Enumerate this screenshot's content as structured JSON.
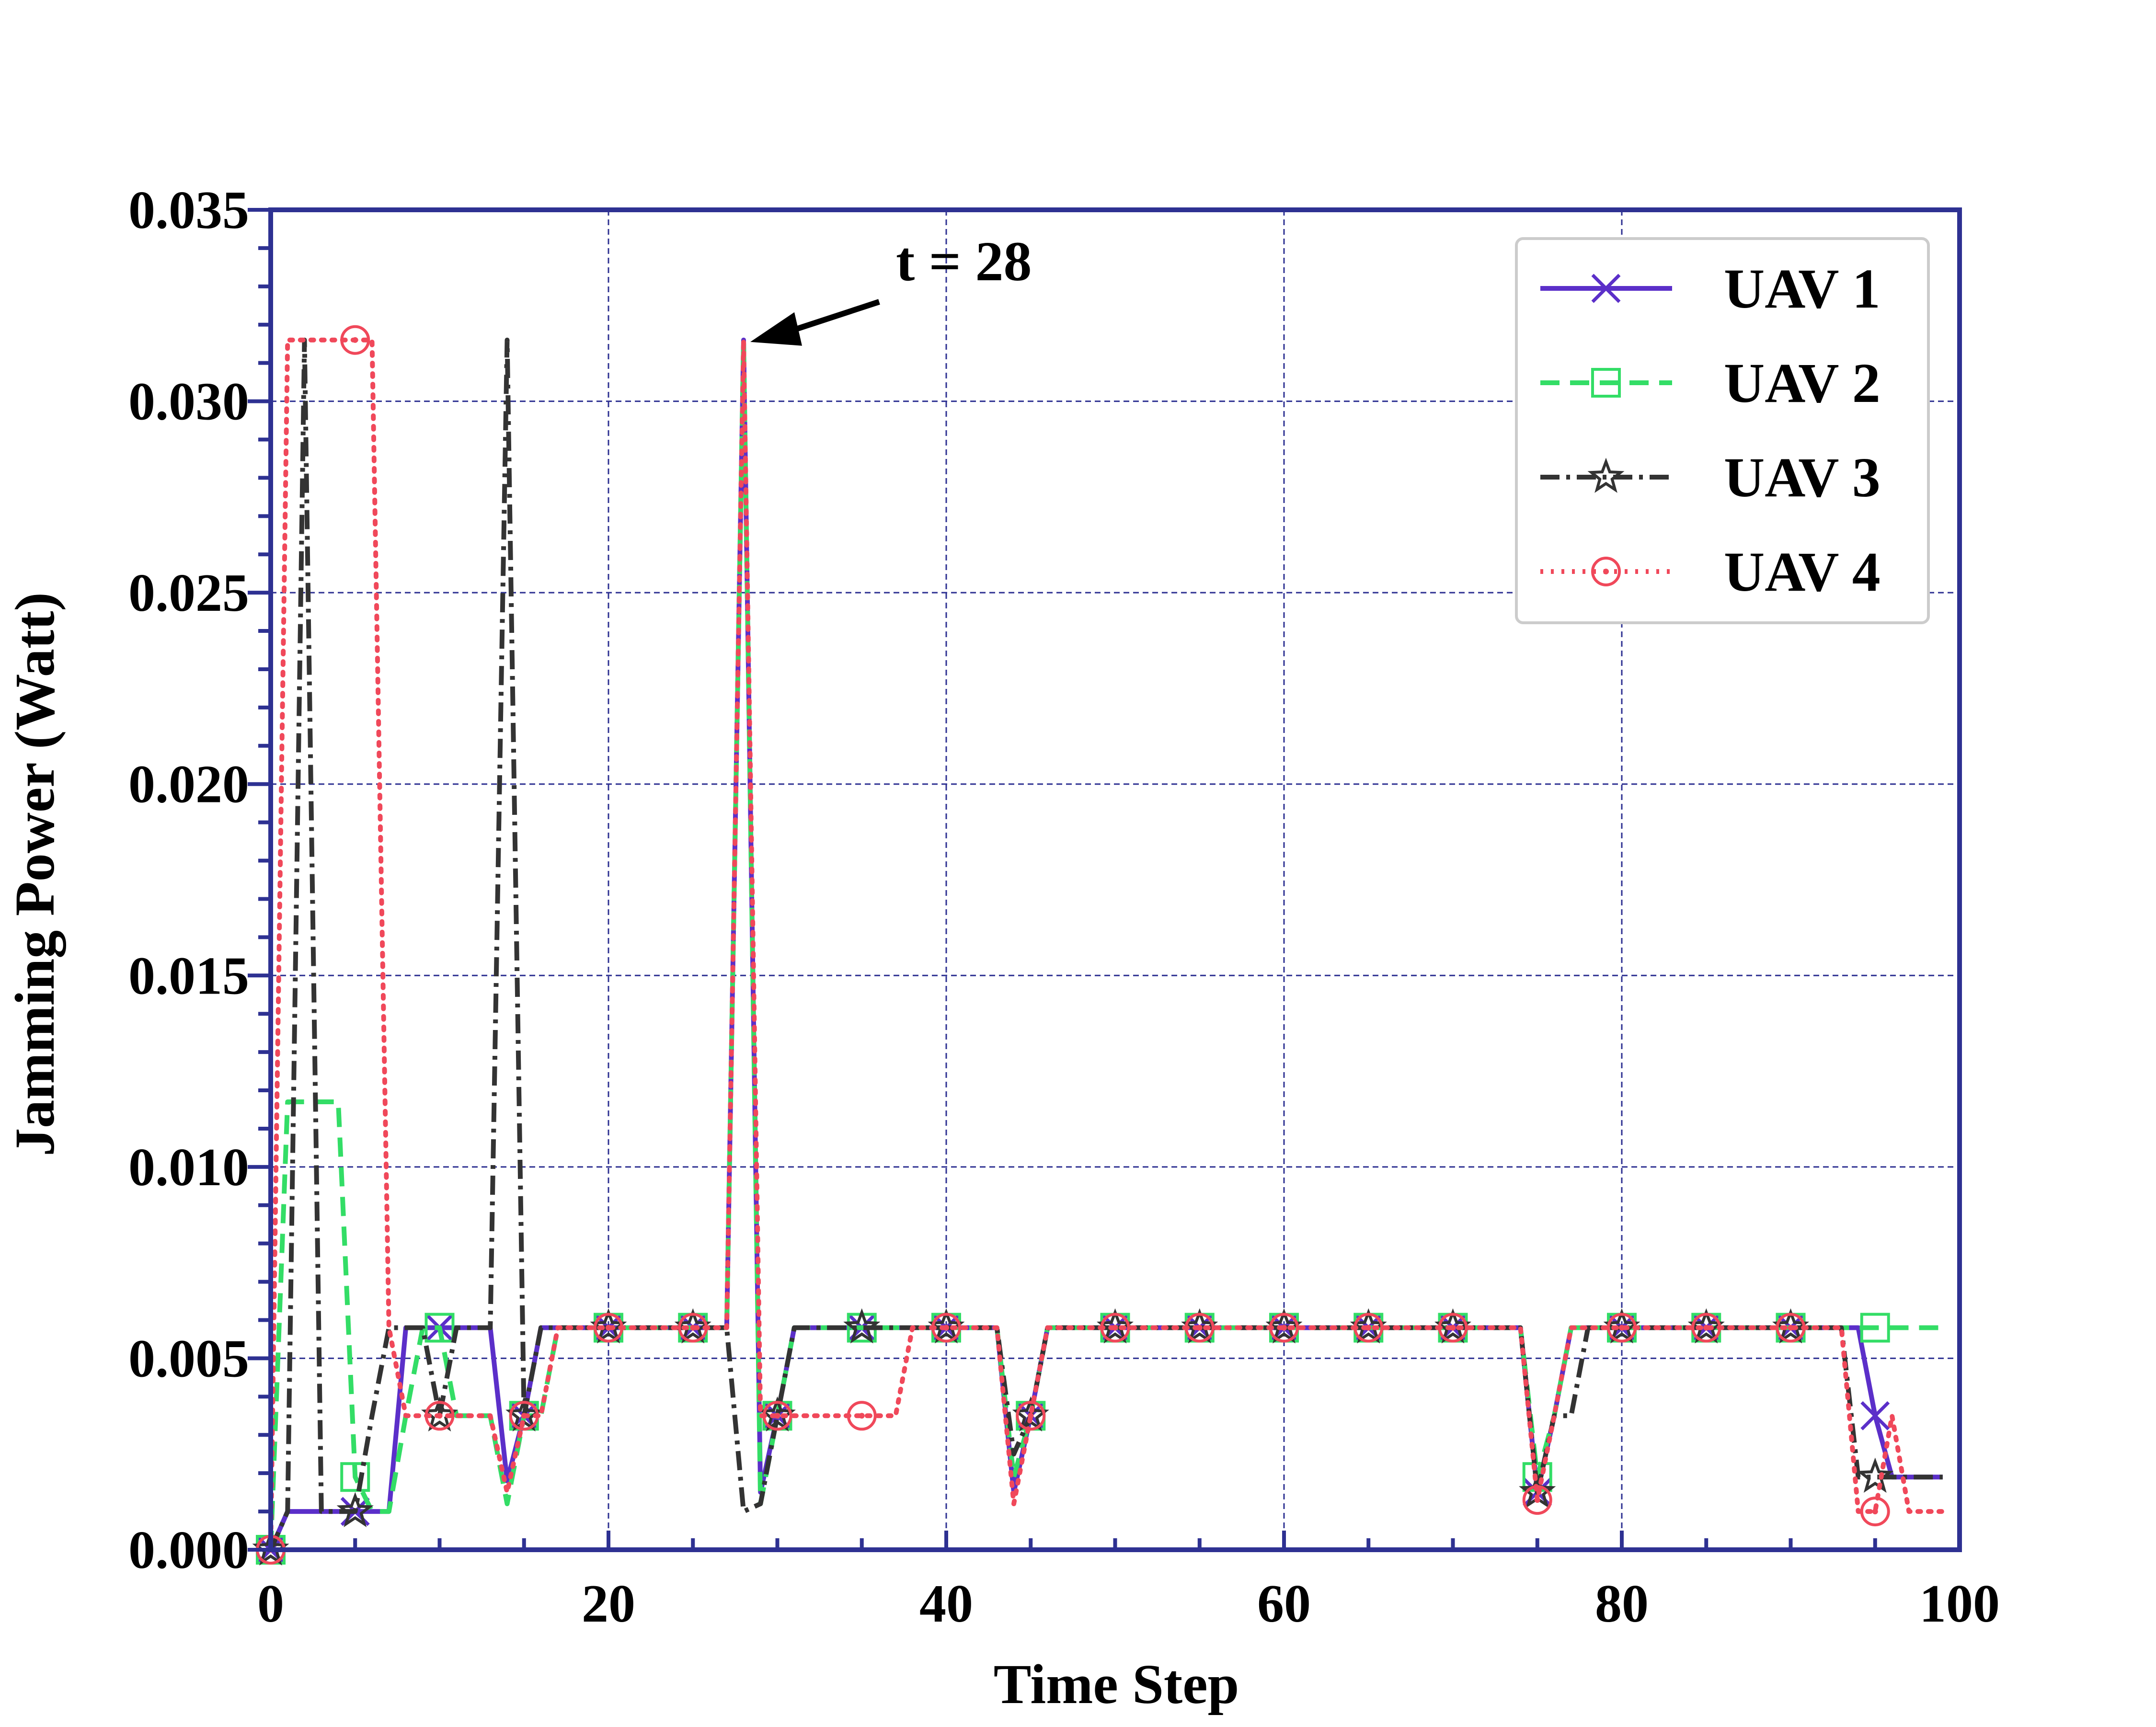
{
  "chart_data": {
    "type": "line",
    "title": "",
    "xlabel": "Time Step",
    "ylabel": "Jamming Power (Watt)",
    "xlim": [
      0,
      100
    ],
    "ylim": [
      0,
      0.035
    ],
    "x_ticks": [
      0,
      20,
      40,
      60,
      80,
      100
    ],
    "x_tick_labels": [
      "0",
      "20",
      "40",
      "60",
      "80",
      "100"
    ],
    "y_ticks": [
      0,
      0.005,
      0.01,
      0.015,
      0.02,
      0.025,
      0.03,
      0.035
    ],
    "y_tick_labels": [
      "0.000",
      "0.005",
      "0.010",
      "0.015",
      "0.020",
      "0.025",
      "0.030",
      "0.035"
    ],
    "grid": true,
    "legend_position": "top-right",
    "annotation": {
      "text": "t = 28",
      "x": 28,
      "y": 0.0316
    },
    "colors": {
      "frame": "#2e3192",
      "grid": "#2e3192"
    },
    "x": [
      0,
      1,
      2,
      3,
      4,
      5,
      6,
      7,
      8,
      9,
      10,
      11,
      12,
      13,
      14,
      15,
      16,
      17,
      18,
      19,
      20,
      21,
      22,
      23,
      24,
      25,
      26,
      27,
      28,
      29,
      30,
      31,
      32,
      33,
      34,
      35,
      36,
      37,
      38,
      39,
      40,
      41,
      42,
      43,
      44,
      45,
      46,
      47,
      48,
      49,
      50,
      51,
      52,
      53,
      54,
      55,
      56,
      57,
      58,
      59,
      60,
      61,
      62,
      63,
      64,
      65,
      66,
      67,
      68,
      69,
      70,
      71,
      72,
      73,
      74,
      75,
      76,
      77,
      78,
      79,
      80,
      81,
      82,
      83,
      84,
      85,
      86,
      87,
      88,
      89,
      90,
      91,
      92,
      93,
      94,
      95,
      96,
      97,
      98,
      99
    ],
    "series": [
      {
        "name": "UAV 1",
        "color": "#5b2fc9",
        "marker": "x",
        "dash": "",
        "values": [
          0,
          0.001,
          0.001,
          0.001,
          0.001,
          0.001,
          0.001,
          0.001,
          0.0058,
          0.0058,
          0.0058,
          0.0058,
          0.0058,
          0.0058,
          0.0018,
          0.0035,
          0.0058,
          0.0058,
          0.0058,
          0.0058,
          0.0058,
          0.0058,
          0.0058,
          0.0058,
          0.0058,
          0.0058,
          0.0058,
          0.0058,
          0.0316,
          0.0015,
          0.0035,
          0.0058,
          0.0058,
          0.0058,
          0.0058,
          0.0058,
          0.0058,
          0.0058,
          0.0058,
          0.0058,
          0.0058,
          0.0058,
          0.0058,
          0.0058,
          0.0015,
          0.0035,
          0.0058,
          0.0058,
          0.0058,
          0.0058,
          0.0058,
          0.0058,
          0.0058,
          0.0058,
          0.0058,
          0.0058,
          0.0058,
          0.0058,
          0.0058,
          0.0058,
          0.0058,
          0.0058,
          0.0058,
          0.0058,
          0.0058,
          0.0058,
          0.0058,
          0.0058,
          0.0058,
          0.0058,
          0.0058,
          0.0058,
          0.0058,
          0.0058,
          0.0058,
          0.0015,
          0.0035,
          0.0058,
          0.0058,
          0.0058,
          0.0058,
          0.0058,
          0.0058,
          0.0058,
          0.0058,
          0.0058,
          0.0058,
          0.0058,
          0.0058,
          0.0058,
          0.0058,
          0.0058,
          0.0058,
          0.0058,
          0.0058,
          0.0035,
          0.0019,
          0.0019,
          0.0019,
          0.0019
        ]
      },
      {
        "name": "UAV 2",
        "color": "#33dd66",
        "marker": "square",
        "dash": "40,22",
        "values": [
          0,
          0.0117,
          0.0117,
          0.0117,
          0.0117,
          0.0019,
          0.001,
          0.001,
          0.0035,
          0.0058,
          0.0058,
          0.0035,
          0.0035,
          0.0035,
          0.0012,
          0.0035,
          0.0035,
          0.0058,
          0.0058,
          0.0058,
          0.0058,
          0.0058,
          0.0058,
          0.0058,
          0.0058,
          0.0058,
          0.0058,
          0.0058,
          0.0316,
          0.0012,
          0.0035,
          0.0058,
          0.0058,
          0.0058,
          0.0058,
          0.0058,
          0.0058,
          0.0058,
          0.0058,
          0.0058,
          0.0058,
          0.0058,
          0.0058,
          0.0058,
          0.0019,
          0.0035,
          0.0058,
          0.0058,
          0.0058,
          0.0058,
          0.0058,
          0.0058,
          0.0058,
          0.0058,
          0.0058,
          0.0058,
          0.0058,
          0.0058,
          0.0058,
          0.0058,
          0.0058,
          0.0058,
          0.0058,
          0.0058,
          0.0058,
          0.0058,
          0.0058,
          0.0058,
          0.0058,
          0.0058,
          0.0058,
          0.0058,
          0.0058,
          0.0058,
          0.0058,
          0.0019,
          0.0035,
          0.0058,
          0.0058,
          0.0058,
          0.0058,
          0.0058,
          0.0058,
          0.0058,
          0.0058,
          0.0058,
          0.0058,
          0.0058,
          0.0058,
          0.0058,
          0.0058,
          0.0058,
          0.0058,
          0.0058,
          0.0058,
          0.0058,
          0.0058,
          0.0058,
          0.0058,
          0.0058
        ]
      },
      {
        "name": "UAV 3",
        "color": "#333333",
        "marker": "star",
        "dash": "40,14,8,14",
        "values": [
          0,
          0.001,
          0.0316,
          0.001,
          0.001,
          0.001,
          0.0035,
          0.0058,
          0.0058,
          0.0058,
          0.0035,
          0.0058,
          0.0058,
          0.0058,
          0.0316,
          0.0035,
          0.0058,
          0.0058,
          0.0058,
          0.0058,
          0.0058,
          0.0058,
          0.0058,
          0.0058,
          0.0058,
          0.0058,
          0.0058,
          0.0058,
          0.001,
          0.0012,
          0.0035,
          0.0058,
          0.0058,
          0.0058,
          0.0058,
          0.0058,
          0.0058,
          0.0058,
          0.0058,
          0.0058,
          0.0058,
          0.0058,
          0.0058,
          0.0058,
          0.0025,
          0.0035,
          0.0058,
          0.0058,
          0.0058,
          0.0058,
          0.0058,
          0.0058,
          0.0058,
          0.0058,
          0.0058,
          0.0058,
          0.0058,
          0.0058,
          0.0058,
          0.0058,
          0.0058,
          0.0058,
          0.0058,
          0.0058,
          0.0058,
          0.0058,
          0.0058,
          0.0058,
          0.0058,
          0.0058,
          0.0058,
          0.0058,
          0.0058,
          0.0058,
          0.0058,
          0.0015,
          0.0035,
          0.0035,
          0.0058,
          0.0058,
          0.0058,
          0.0058,
          0.0058,
          0.0058,
          0.0058,
          0.0058,
          0.0058,
          0.0058,
          0.0058,
          0.0058,
          0.0058,
          0.0058,
          0.0058,
          0.0058,
          0.0019,
          0.0019,
          0.0019,
          0.0019,
          0.0019,
          0.0019
        ]
      },
      {
        "name": "UAV 4",
        "color": "#f0485a",
        "marker": "circle",
        "dash": "6,16",
        "values": [
          0,
          0.0316,
          0.0316,
          0.0316,
          0.0316,
          0.0316,
          0.0316,
          0.0058,
          0.0035,
          0.0035,
          0.0035,
          0.0035,
          0.0035,
          0.0035,
          0.0015,
          0.0035,
          0.0035,
          0.0058,
          0.0058,
          0.0058,
          0.0058,
          0.0058,
          0.0058,
          0.0058,
          0.0058,
          0.0058,
          0.0058,
          0.0058,
          0.0316,
          0.0035,
          0.0035,
          0.0035,
          0.0035,
          0.0035,
          0.0035,
          0.0035,
          0.0035,
          0.0035,
          0.0058,
          0.0058,
          0.0058,
          0.0058,
          0.0058,
          0.0058,
          0.0012,
          0.0035,
          0.0058,
          0.0058,
          0.0058,
          0.0058,
          0.0058,
          0.0058,
          0.0058,
          0.0058,
          0.0058,
          0.0058,
          0.0058,
          0.0058,
          0.0058,
          0.0058,
          0.0058,
          0.0058,
          0.0058,
          0.0058,
          0.0058,
          0.0058,
          0.0058,
          0.0058,
          0.0058,
          0.0058,
          0.0058,
          0.0058,
          0.0058,
          0.0058,
          0.0058,
          0.0013,
          0.0035,
          0.0058,
          0.0058,
          0.0058,
          0.0058,
          0.0058,
          0.0058,
          0.0058,
          0.0058,
          0.0058,
          0.0058,
          0.0058,
          0.0058,
          0.0058,
          0.0058,
          0.0058,
          0.0058,
          0.0058,
          0.001,
          0.001,
          0.0035,
          0.001,
          0.001,
          0.001
        ]
      }
    ]
  }
}
